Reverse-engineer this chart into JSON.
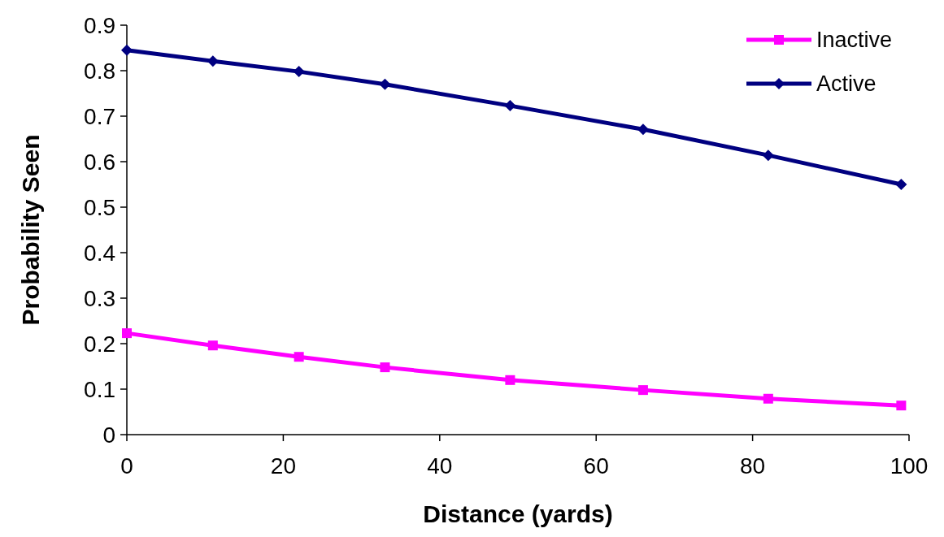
{
  "chart_data": {
    "type": "line",
    "xlabel": "Distance (yards)",
    "ylabel": "Probability Seen",
    "xlim": [
      0,
      100
    ],
    "xticks": [
      0,
      20,
      40,
      60,
      80,
      100
    ],
    "ylim": [
      0,
      0.9
    ],
    "yticks": [
      0,
      0.1,
      0.2,
      0.3,
      0.4,
      0.5,
      0.6,
      0.7,
      0.8,
      0.9
    ],
    "grid": false,
    "legend": "top right",
    "line_style": "solid",
    "series": [
      {
        "name": "Inactive",
        "color": "#ff00ff",
        "marker": "square",
        "x": [
          0,
          11,
          22,
          33,
          49,
          66,
          82,
          99
        ],
        "values": [
          0.223,
          0.196,
          0.171,
          0.148,
          0.12,
          0.098,
          0.079,
          0.064
        ]
      },
      {
        "name": "Active",
        "color": "#000080",
        "marker": "diamond",
        "x": [
          0,
          11,
          22,
          33,
          49,
          66,
          82,
          99
        ],
        "values": [
          0.845,
          0.821,
          0.798,
          0.77,
          0.723,
          0.671,
          0.614,
          0.55
        ]
      }
    ]
  }
}
